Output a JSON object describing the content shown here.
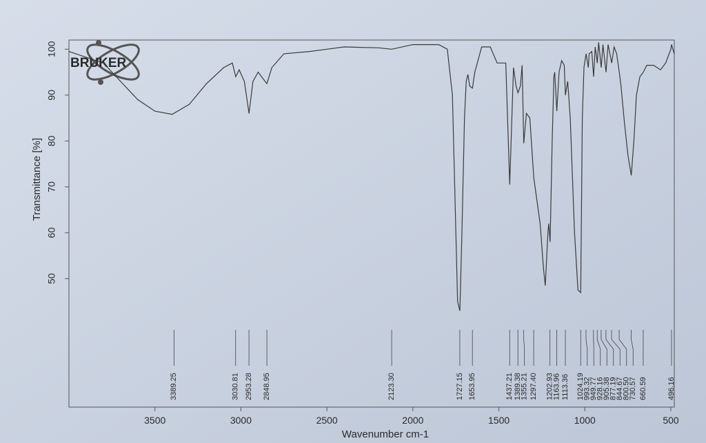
{
  "logo": "BRUKER",
  "chart_data": {
    "type": "line",
    "x_label": "Wavenumber cm-1",
    "y_label": "Transmittance [%]",
    "color": "#3a3a3a",
    "xlim": [
      4000,
      480
    ],
    "ylim": [
      22,
      102
    ],
    "xticks": [
      3500,
      3000,
      2500,
      2000,
      1500,
      1000,
      500
    ],
    "yticks": [
      50,
      60,
      70,
      80,
      90,
      100
    ],
    "x": [
      4000,
      3800,
      3700,
      3600,
      3500,
      3400,
      3300,
      3200,
      3100,
      3050,
      3030,
      3010,
      2980,
      2953,
      2930,
      2900,
      2870,
      2849,
      2820,
      2750,
      2600,
      2500,
      2400,
      2200,
      2123,
      2000,
      1850,
      1800,
      1770,
      1750,
      1740,
      1727,
      1715,
      1700,
      1690,
      1680,
      1670,
      1654,
      1640,
      1600,
      1550,
      1510,
      1460,
      1437,
      1415,
      1400,
      1389,
      1375,
      1365,
      1355,
      1340,
      1320,
      1297,
      1260,
      1240,
      1230,
      1215,
      1210,
      1202,
      1190,
      1180,
      1175,
      1163,
      1150,
      1135,
      1120,
      1113,
      1100,
      1085,
      1060,
      1040,
      1024,
      1015,
      1005,
      993,
      980,
      975,
      960,
      949,
      940,
      928,
      920,
      905,
      895,
      877,
      865,
      844,
      830,
      815,
      800,
      790,
      770,
      750,
      730,
      715,
      700,
      680,
      660,
      640,
      600,
      560,
      530,
      500,
      496,
      480
    ],
    "values": [
      99.5,
      97,
      93,
      89,
      86.5,
      85.8,
      88,
      92.5,
      96,
      97,
      94,
      95.5,
      93,
      86,
      93,
      95,
      93.5,
      92.5,
      96,
      99,
      99.5,
      100,
      100.5,
      100.3,
      100,
      101,
      101,
      100,
      90,
      60,
      45,
      43,
      60,
      85,
      93,
      94.5,
      92,
      91.5,
      95,
      100.5,
      100.5,
      97,
      97,
      70.5,
      96,
      92,
      90.5,
      92,
      96.5,
      79.5,
      86,
      85,
      72,
      62,
      52,
      48.5,
      60,
      62,
      58,
      80,
      94,
      95,
      86.5,
      95,
      97.5,
      96.5,
      90,
      93,
      85,
      60,
      47.5,
      47,
      85,
      96,
      99,
      96,
      99,
      99.5,
      94,
      100.5,
      97,
      101.5,
      96,
      101,
      95,
      101,
      97,
      100.5,
      99,
      95,
      92,
      84,
      77,
      72.5,
      80,
      90,
      94,
      95,
      96.5,
      96.5,
      95.5,
      97,
      100,
      101,
      99
    ],
    "peak_labels": [
      3389.25,
      3030.81,
      2953.28,
      2848.95,
      {
        "value": 2123.3,
        "label": "2123.30"
      },
      1727.15,
      1653.95,
      1437.21,
      1389.38,
      1355.21,
      {
        "value": 1297.4,
        "label": "1297.40"
      },
      1202.93,
      1163.96,
      1113.36,
      1024.19,
      993.32,
      949.77,
      928.16,
      905.38,
      877.19,
      844.67,
      {
        "value": 800.5,
        "label": "800.50"
      },
      730.57,
      660.59,
      496.16
    ]
  }
}
